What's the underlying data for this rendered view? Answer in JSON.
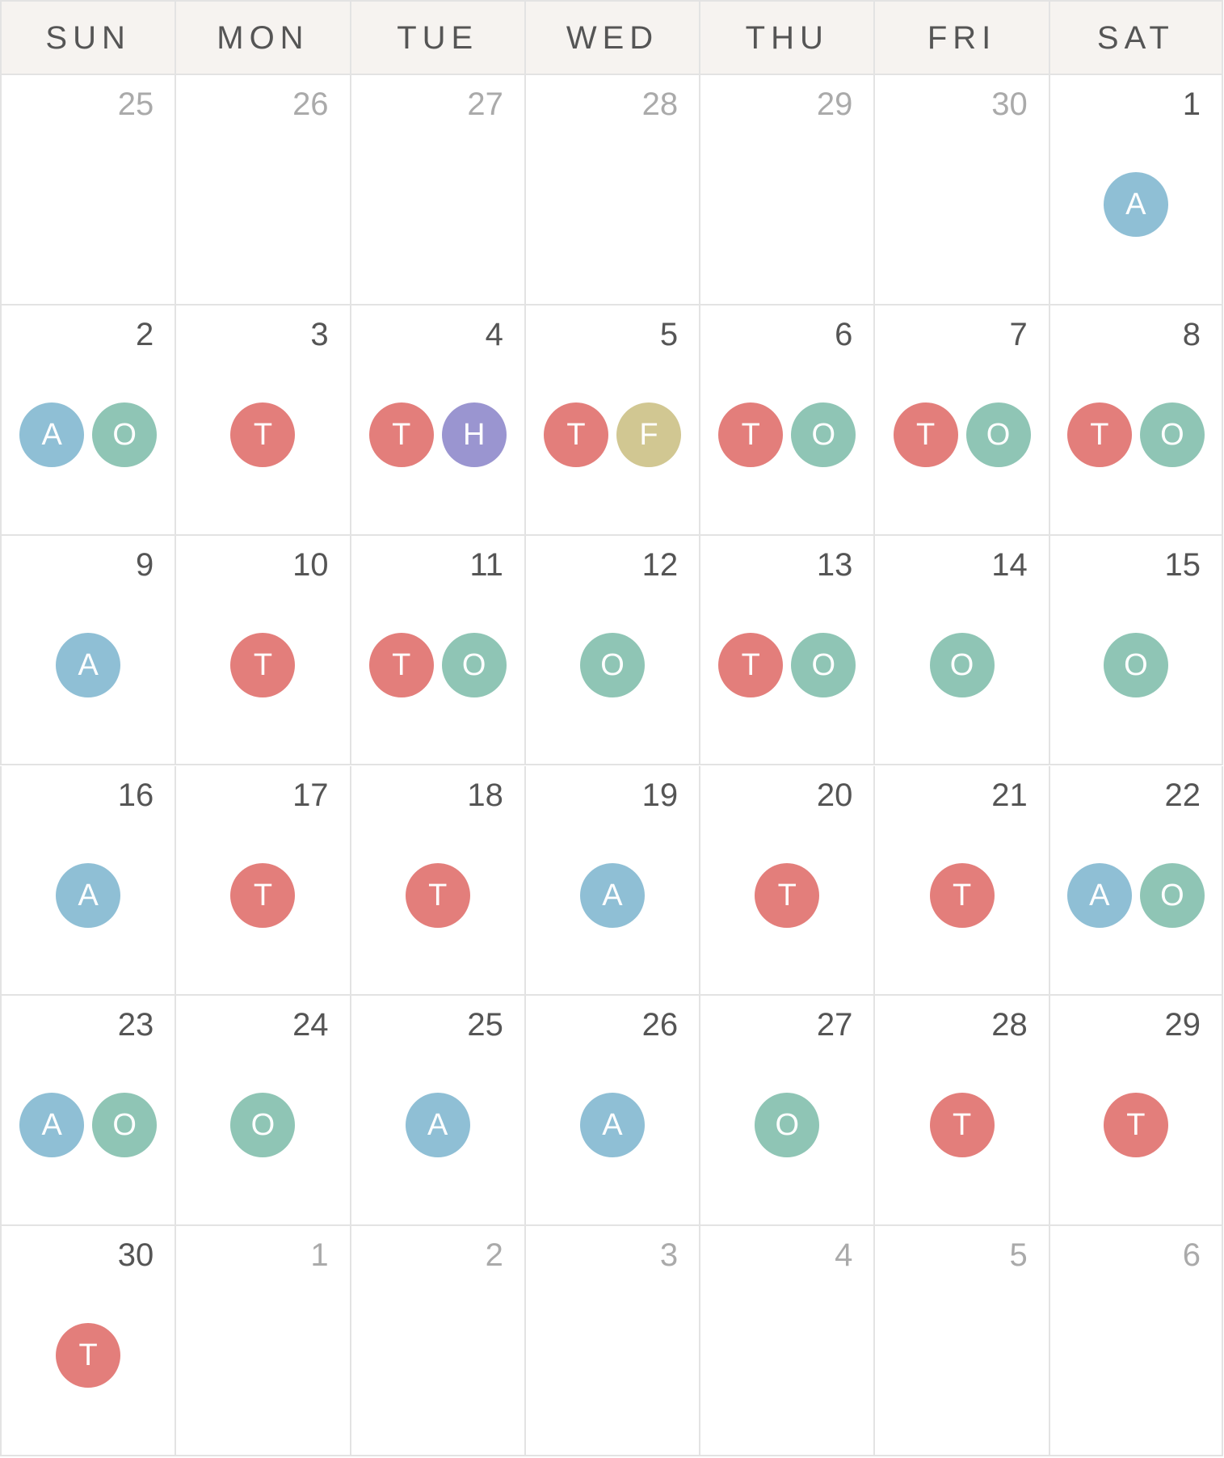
{
  "colors": {
    "A": "#8fbfd5",
    "O": "#8fc5b5",
    "T": "#e37e7b",
    "H": "#9a95d0",
    "F": "#d1c792"
  },
  "weekdays": [
    "SUN",
    "MON",
    "TUE",
    "WED",
    "THU",
    "FRI",
    "SAT"
  ],
  "weeks": [
    [
      {
        "day": "25",
        "other": true,
        "events": []
      },
      {
        "day": "26",
        "other": true,
        "events": []
      },
      {
        "day": "27",
        "other": true,
        "events": []
      },
      {
        "day": "28",
        "other": true,
        "events": []
      },
      {
        "day": "29",
        "other": true,
        "events": []
      },
      {
        "day": "30",
        "other": true,
        "events": []
      },
      {
        "day": "1",
        "other": false,
        "events": [
          "A"
        ]
      }
    ],
    [
      {
        "day": "2",
        "other": false,
        "events": [
          "A",
          "O"
        ]
      },
      {
        "day": "3",
        "other": false,
        "events": [
          "T"
        ]
      },
      {
        "day": "4",
        "other": false,
        "events": [
          "T",
          "H"
        ]
      },
      {
        "day": "5",
        "other": false,
        "events": [
          "T",
          "F"
        ]
      },
      {
        "day": "6",
        "other": false,
        "events": [
          "T",
          "O"
        ]
      },
      {
        "day": "7",
        "other": false,
        "events": [
          "T",
          "O"
        ]
      },
      {
        "day": "8",
        "other": false,
        "events": [
          "T",
          "O"
        ]
      }
    ],
    [
      {
        "day": "9",
        "other": false,
        "events": [
          "A"
        ]
      },
      {
        "day": "10",
        "other": false,
        "events": [
          "T"
        ]
      },
      {
        "day": "11",
        "other": false,
        "events": [
          "T",
          "O"
        ]
      },
      {
        "day": "12",
        "other": false,
        "events": [
          "O"
        ]
      },
      {
        "day": "13",
        "other": false,
        "events": [
          "T",
          "O"
        ]
      },
      {
        "day": "14",
        "other": false,
        "events": [
          "O"
        ]
      },
      {
        "day": "15",
        "other": false,
        "events": [
          "O"
        ]
      }
    ],
    [
      {
        "day": "16",
        "other": false,
        "events": [
          "A"
        ]
      },
      {
        "day": "17",
        "other": false,
        "events": [
          "T"
        ]
      },
      {
        "day": "18",
        "other": false,
        "events": [
          "T"
        ]
      },
      {
        "day": "19",
        "other": false,
        "events": [
          "A"
        ]
      },
      {
        "day": "20",
        "other": false,
        "events": [
          "T"
        ]
      },
      {
        "day": "21",
        "other": false,
        "events": [
          "T"
        ]
      },
      {
        "day": "22",
        "other": false,
        "events": [
          "A",
          "O"
        ]
      }
    ],
    [
      {
        "day": "23",
        "other": false,
        "events": [
          "A",
          "O"
        ]
      },
      {
        "day": "24",
        "other": false,
        "events": [
          "O"
        ]
      },
      {
        "day": "25",
        "other": false,
        "events": [
          "A"
        ]
      },
      {
        "day": "26",
        "other": false,
        "events": [
          "A"
        ]
      },
      {
        "day": "27",
        "other": false,
        "events": [
          "O"
        ]
      },
      {
        "day": "28",
        "other": false,
        "events": [
          "T"
        ]
      },
      {
        "day": "29",
        "other": false,
        "events": [
          "T"
        ]
      }
    ],
    [
      {
        "day": "30",
        "other": false,
        "events": [
          "T"
        ]
      },
      {
        "day": "1",
        "other": true,
        "events": []
      },
      {
        "day": "2",
        "other": true,
        "events": []
      },
      {
        "day": "3",
        "other": true,
        "events": []
      },
      {
        "day": "4",
        "other": true,
        "events": []
      },
      {
        "day": "5",
        "other": true,
        "events": []
      },
      {
        "day": "6",
        "other": true,
        "events": []
      }
    ]
  ]
}
